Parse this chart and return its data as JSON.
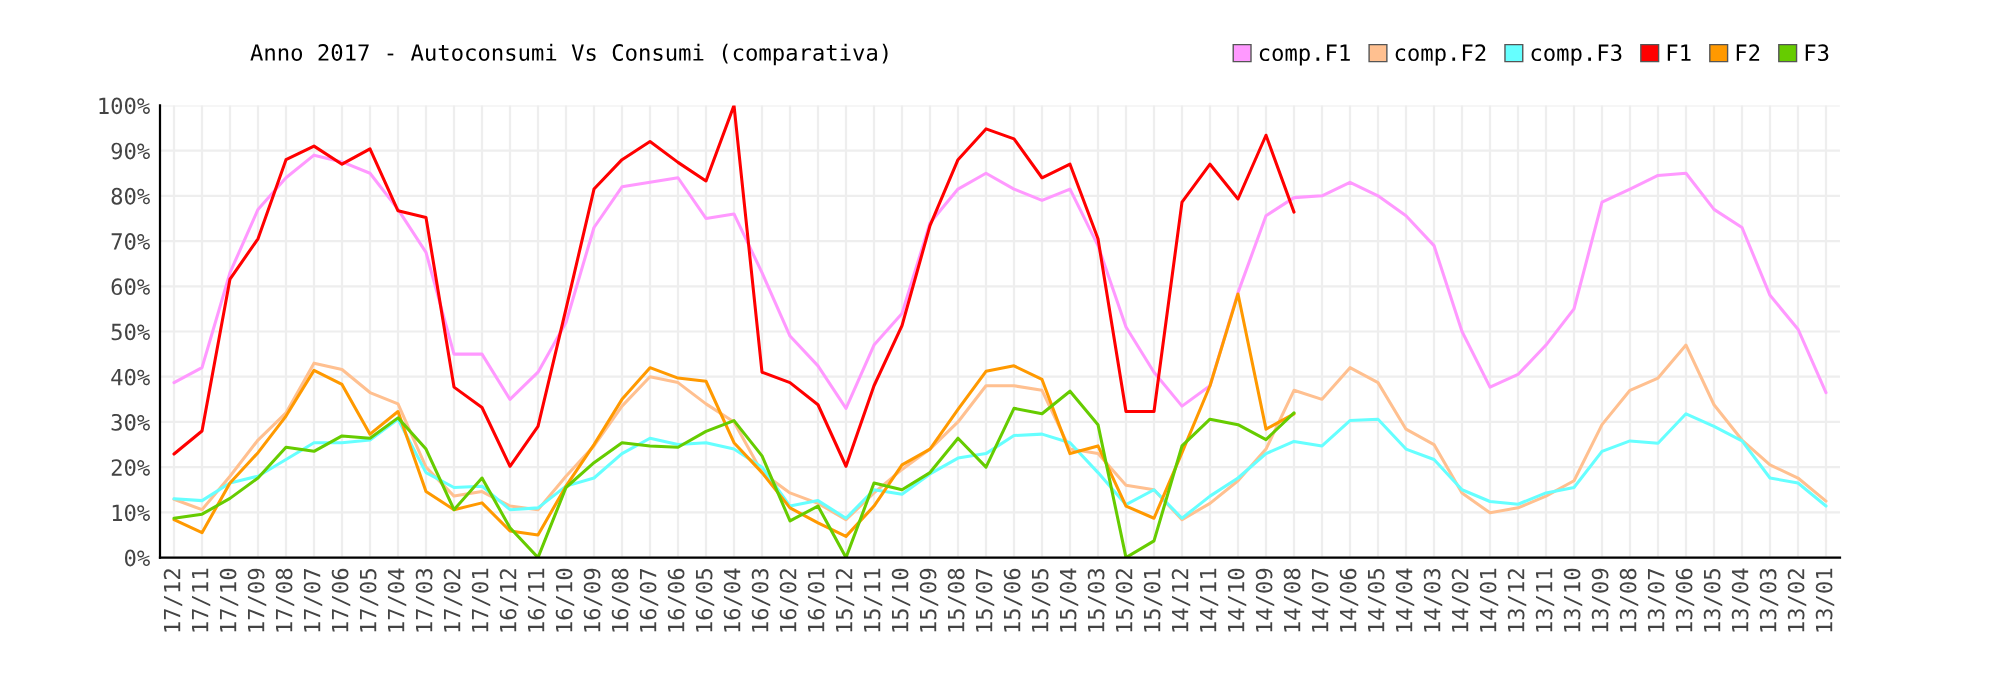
{
  "chart_data": {
    "type": "line",
    "title": "Anno 2017 - Autoconsumi Vs Consumi (comparativa)",
    "categories": [
      "17/12",
      "17/11",
      "17/10",
      "17/09",
      "17/08",
      "17/07",
      "17/06",
      "17/05",
      "17/04",
      "17/03",
      "17/02",
      "17/01",
      "16/12",
      "16/11",
      "16/10",
      "16/09",
      "16/08",
      "16/07",
      "16/06",
      "16/05",
      "16/04",
      "16/03",
      "16/02",
      "16/01",
      "15/12",
      "15/11",
      "15/10",
      "15/09",
      "15/08",
      "15/07",
      "15/06",
      "15/05",
      "15/04",
      "15/03",
      "15/02",
      "15/01",
      "14/12",
      "14/11",
      "14/10",
      "14/09",
      "14/08",
      "14/07",
      "14/06",
      "14/05",
      "14/04",
      "14/03",
      "14/02",
      "14/01",
      "13/12",
      "13/11",
      "13/10",
      "13/09",
      "13/08",
      "13/07",
      "13/06",
      "13/05",
      "13/04",
      "13/03",
      "13/02",
      "13/01"
    ],
    "series": [
      {
        "name": "comp.F1",
        "color": "#ff99ff",
        "values": [
          38.7,
          42,
          63,
          77,
          84,
          89,
          87.5,
          85,
          77,
          67.5,
          45,
          45,
          35,
          41,
          52,
          73,
          82,
          83,
          84,
          75,
          76,
          63,
          49,
          42.4,
          33,
          47,
          54,
          74,
          81.5,
          85,
          81.5,
          79,
          81.5,
          69,
          51,
          41,
          33.5,
          38,
          58.6,
          75.6,
          79.6,
          80,
          83,
          80,
          75.6,
          69,
          50,
          37.7,
          40.5,
          47,
          55,
          78.6,
          81.5,
          84.5,
          85,
          77,
          73,
          58,
          50.5,
          36.5
        ]
      },
      {
        "name": "comp.F2",
        "color": "#ffc090",
        "values": [
          12.9,
          10.6,
          18,
          26,
          32,
          43,
          41.6,
          36.5,
          34,
          20,
          13.6,
          14.6,
          11.4,
          10.6,
          18,
          24.7,
          33.5,
          40,
          38.7,
          34,
          30,
          18.8,
          14.3,
          12,
          8.4,
          14.3,
          19.5,
          24,
          30,
          38,
          38,
          37,
          24,
          23,
          16,
          15,
          8.4,
          12,
          17,
          24,
          37,
          35,
          42,
          38.7,
          28.4,
          25,
          14.3,
          9.9,
          11,
          13.6,
          17,
          29.4,
          37,
          39.7,
          47,
          33.8,
          26,
          20.5,
          17.6,
          12.5
        ]
      },
      {
        "name": "comp.F3",
        "color": "#66ffff",
        "values": [
          13,
          12.6,
          16.5,
          18,
          21.7,
          25.4,
          25.4,
          26,
          30.6,
          18.8,
          15.5,
          15.8,
          10.6,
          11,
          15.8,
          17.6,
          23,
          26.4,
          25,
          25.4,
          24,
          20,
          11.4,
          12.6,
          8.7,
          15,
          14,
          18.5,
          22,
          23,
          27,
          27.3,
          25.4,
          18.8,
          11.7,
          15,
          8.7,
          13.6,
          17.6,
          23,
          25.7,
          24.7,
          30.3,
          30.6,
          24,
          21.7,
          15,
          12.4,
          11.8,
          14.3,
          15.5,
          23.5,
          25.8,
          25.3,
          31.8,
          29,
          25.8,
          17.6,
          16.5,
          11.4
        ]
      },
      {
        "name": "F1",
        "color": "#ff0000",
        "values": [
          22.9,
          28,
          61.6,
          70.5,
          88,
          91,
          87,
          90.4,
          76.7,
          75.2,
          37.7,
          33.2,
          20.2,
          29,
          55,
          81.5,
          88,
          92,
          87.4,
          83.3,
          100,
          41,
          38.7,
          33.8,
          20.2,
          38,
          51.3,
          73.4,
          88,
          94.8,
          92.6,
          84,
          87,
          70.5,
          32.3,
          32.3,
          78.6,
          87,
          79.3,
          93.4,
          76.4,
          null,
          null,
          null,
          null,
          null,
          null,
          null,
          null,
          null,
          null,
          null,
          null,
          null,
          null,
          null,
          null,
          null,
          null,
          null
        ]
      },
      {
        "name": "F2",
        "color": "#ff9900",
        "values": [
          8.4,
          5.5,
          16.5,
          23.2,
          31.3,
          41.4,
          38.3,
          27.3,
          32.3,
          14.6,
          10.6,
          12.1,
          5.9,
          5,
          15.8,
          25,
          35,
          42,
          39.7,
          39,
          25.4,
          18.8,
          11,
          7.7,
          4.7,
          11.4,
          20.5,
          24,
          32.8,
          41.2,
          42.4,
          39.4,
          23,
          24.7,
          11.4,
          8.7,
          23.2,
          38,
          58.3,
          28.4,
          31.8,
          null,
          null,
          null,
          null,
          null,
          null,
          null,
          null,
          null,
          null,
          null,
          null,
          null,
          null,
          null,
          null,
          null,
          null,
          null
        ]
      },
      {
        "name": "F3",
        "color": "#66cc00",
        "values": [
          8.7,
          9.6,
          13.1,
          17.6,
          24.4,
          23.5,
          26.9,
          26.4,
          30.9,
          24,
          10.6,
          17.6,
          6.6,
          0,
          15.5,
          21,
          25.4,
          24.7,
          24.4,
          27.9,
          30.3,
          22.5,
          8.1,
          11.4,
          0,
          16.5,
          15,
          18.8,
          26.4,
          20,
          33,
          31.8,
          36.8,
          29.4,
          0,
          3.7,
          24.7,
          30.6,
          29.4,
          26.1,
          32,
          null,
          null,
          null,
          null,
          null,
          null,
          null,
          null,
          null,
          null,
          null,
          null,
          null,
          null,
          null,
          null,
          null,
          null,
          null
        ]
      }
    ],
    "ylim": [
      0,
      100
    ],
    "yticks": [
      {
        "value": 0,
        "label": "0%"
      },
      {
        "value": 10,
        "label": "10%"
      },
      {
        "value": 20,
        "label": "20%"
      },
      {
        "value": 30,
        "label": "30%"
      },
      {
        "value": 40,
        "label": "40%"
      },
      {
        "value": 50,
        "label": "50%"
      },
      {
        "value": 60,
        "label": "60%"
      },
      {
        "value": 70,
        "label": "70%"
      },
      {
        "value": 80,
        "label": "80%"
      },
      {
        "value": 90,
        "label": "90%"
      },
      {
        "value": 100,
        "label": "100%"
      }
    ],
    "grid": true,
    "legend": "top right"
  }
}
